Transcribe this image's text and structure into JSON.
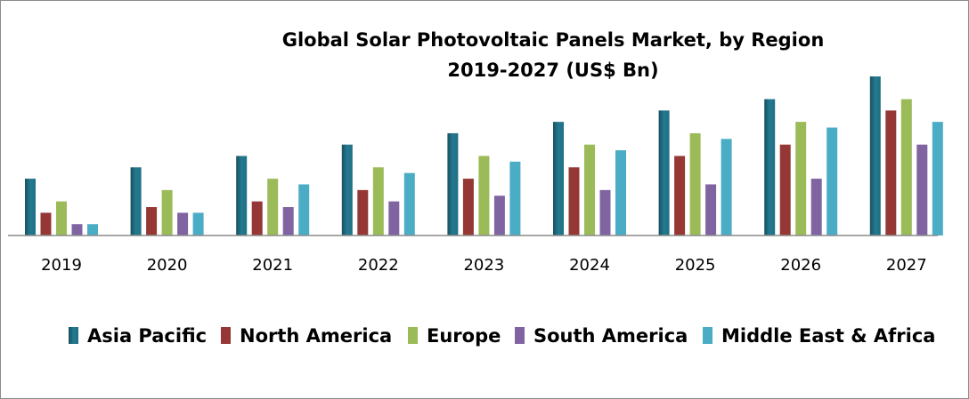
{
  "chart_data": {
    "type": "bar",
    "title": "Global Solar Photovoltaic Panels Market, by Region",
    "subtitle": "2019-2027 (US$ Bn)",
    "xlabel": "",
    "ylabel": "",
    "ylim": [
      0,
      14
    ],
    "grid": false,
    "legend_position": "bottom",
    "categories": [
      "2019",
      "2020",
      "2021",
      "2022",
      "2023",
      "2024",
      "2025",
      "2026",
      "2027"
    ],
    "series": [
      {
        "name": "Asia Pacific",
        "color": "#1f6f85",
        "values": [
          5,
          6,
          7,
          8,
          9,
          10,
          11,
          12,
          14
        ]
      },
      {
        "name": "North America",
        "color": "#953735",
        "values": [
          2,
          2.5,
          3,
          4,
          5,
          6,
          7,
          8,
          11
        ]
      },
      {
        "name": "Europe",
        "color": "#9bbb59",
        "values": [
          3,
          4,
          5,
          6,
          7,
          8,
          9,
          10,
          12
        ]
      },
      {
        "name": "South America",
        "color": "#8064a2",
        "values": [
          1,
          2,
          2.5,
          3,
          3.5,
          4,
          4.5,
          5,
          8
        ]
      },
      {
        "name": "Middle East & Africa",
        "color": "#4bacc6",
        "values": [
          1,
          2,
          4.5,
          5.5,
          6.5,
          7.5,
          8.5,
          9.5,
          10
        ]
      }
    ]
  }
}
